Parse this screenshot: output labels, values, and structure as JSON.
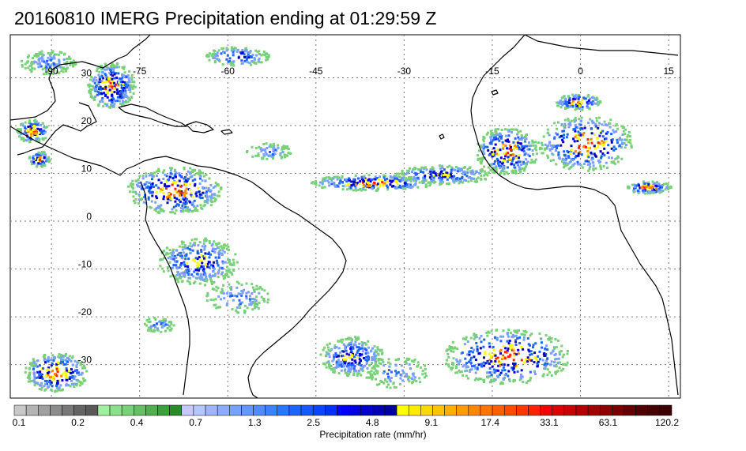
{
  "title": "20160810 IMERG Precipitation ending at 01:29:59 Z",
  "map": {
    "lon_range": [
      -97,
      17
    ],
    "lat_range": [
      -37,
      39
    ],
    "lon_labels": [
      "-90",
      "-75",
      "-60",
      "-45",
      "-30",
      "-15",
      "0",
      "15"
    ],
    "lon_values": [
      -90,
      -75,
      -60,
      -45,
      -30,
      -15,
      0,
      15
    ],
    "lat_labels": [
      "30",
      "20",
      "10",
      "0",
      "-10",
      "-20",
      "-30"
    ],
    "lat_values": [
      30,
      20,
      10,
      0,
      -10,
      -20,
      -30
    ],
    "coast_color": "#000000",
    "grid": true
  },
  "colorbar": {
    "title": "Precipitation rate (mm/hr)",
    "tick_labels": [
      "0.1",
      "0.2",
      "0.4",
      "0.7",
      "1.3",
      "2.5",
      "4.8",
      "9.1",
      "17.4",
      "33.1",
      "63.1",
      "120.2"
    ],
    "colors": [
      "#c8c8c8",
      "#b4b4b4",
      "#a0a0a0",
      "#8c8c8c",
      "#787878",
      "#646464",
      "#5a5a5a",
      "#a0f0a0",
      "#8ce08c",
      "#78d078",
      "#64c064",
      "#50b050",
      "#3ca03c",
      "#288c28",
      "#c8c8ff",
      "#b4c8ff",
      "#a0b4ff",
      "#8caaff",
      "#78a0ff",
      "#6496ff",
      "#508cff",
      "#3c82ff",
      "#2878ff",
      "#1e64ff",
      "#145aff",
      "#0a46ff",
      "#0032ff",
      "#0000ff",
      "#0000e6",
      "#0000cc",
      "#0000b4",
      "#0000a0",
      "#ffff00",
      "#ffeb00",
      "#ffd700",
      "#ffc300",
      "#ffaf00",
      "#ff9b00",
      "#ff8700",
      "#ff7300",
      "#ff5f00",
      "#ff4b00",
      "#ff3700",
      "#ff2300",
      "#f00000",
      "#dc0000",
      "#c80000",
      "#b40000",
      "#a00000",
      "#8c0000",
      "#780000",
      "#640000",
      "#500000",
      "#460000",
      "#3c0000"
    ]
  },
  "precip_colors": {
    "green": "#78d078",
    "lightblue": "#78a0ff",
    "blue": "#1e64ff",
    "darkblue": "#0000cc",
    "yellow": "#ffff00",
    "orange": "#ff8700",
    "red": "#ff2300",
    "gray": "#a0a0a0"
  }
}
